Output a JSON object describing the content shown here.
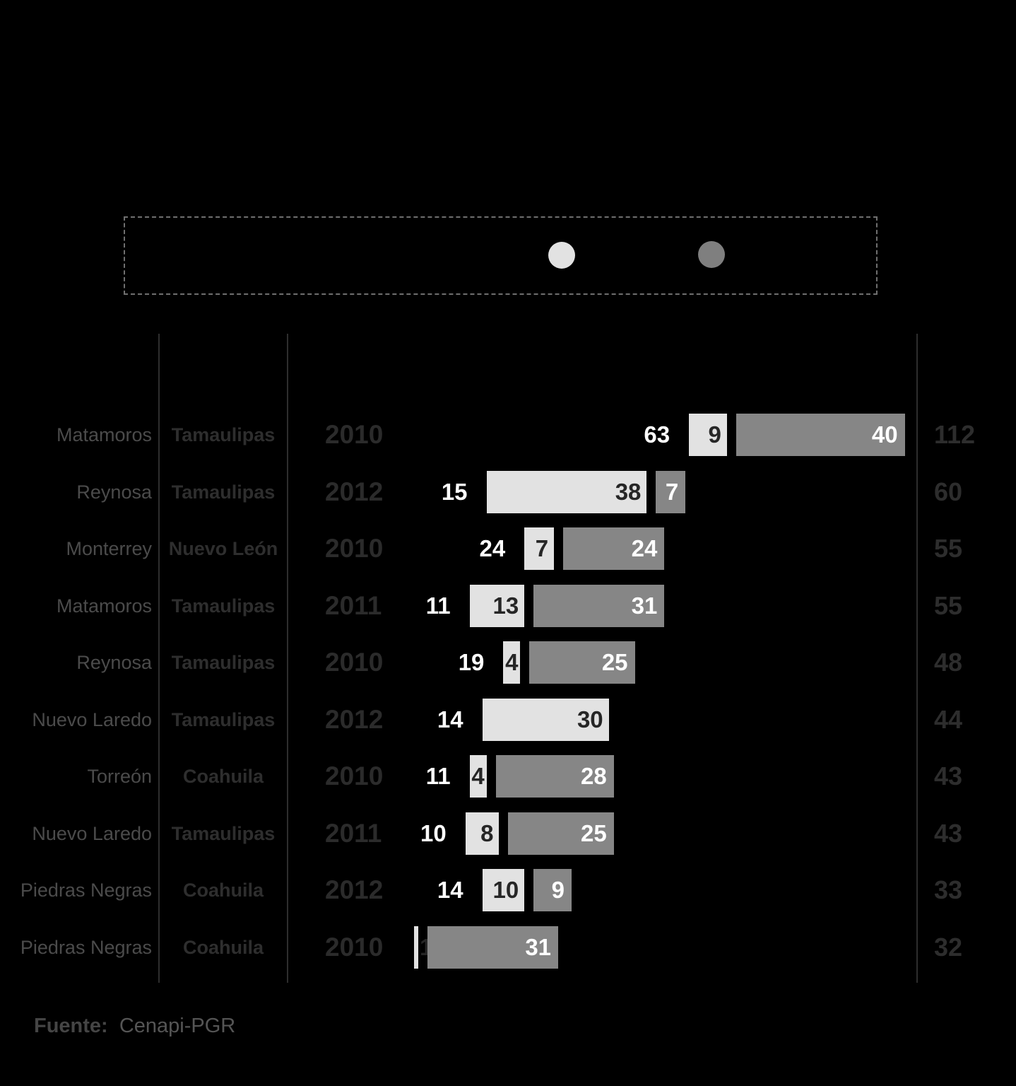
{
  "colors": {
    "background": "#000000",
    "divider_line": "#2e2e2e",
    "city_text": "#4b4b4b",
    "state_text": "#2e2e2e",
    "year_text": "#2b2b2b",
    "total_text": "#2d2d2d",
    "bar_label_on_light": "#262626",
    "bar_label_on_dark": "#ffffff",
    "legend_border": "#6f6f6f"
  },
  "legend": {
    "dots": [
      {
        "icon": "legend-dot-light-icon",
        "color": "#e2e2e2"
      },
      {
        "icon": "legend-dot-dark-icon",
        "color": "#7f7f7f"
      }
    ]
  },
  "chart_data": {
    "type": "bar",
    "orientation": "horizontal",
    "stacked": true,
    "series_colors": [
      "#000000",
      "#e2e2e2",
      "#868686"
    ],
    "rows": [
      {
        "city": "Matamoros",
        "state": "Tamaulipas",
        "year": "2010",
        "values": [
          63,
          9,
          40
        ],
        "total": 112
      },
      {
        "city": "Reynosa",
        "state": "Tamaulipas",
        "year": "2012",
        "values": [
          15,
          38,
          7
        ],
        "total": 60
      },
      {
        "city": "Monterrey",
        "state": "Nuevo León",
        "year": "2010",
        "values": [
          24,
          7,
          24
        ],
        "total": 55
      },
      {
        "city": "Matamoros",
        "state": "Tamaulipas",
        "year": "2011",
        "values": [
          11,
          13,
          31
        ],
        "total": 55
      },
      {
        "city": "Reynosa",
        "state": "Tamaulipas",
        "year": "2010",
        "values": [
          19,
          4,
          25
        ],
        "total": 48
      },
      {
        "city": "Nuevo Laredo",
        "state": "Tamaulipas",
        "year": "2012",
        "values": [
          14,
          30,
          0
        ],
        "total": 44
      },
      {
        "city": "Torreón",
        "state": "Coahuila",
        "year": "2010",
        "values": [
          11,
          4,
          28
        ],
        "total": 43
      },
      {
        "city": "Nuevo Laredo",
        "state": "Tamaulipas",
        "year": "2011",
        "values": [
          10,
          8,
          25
        ],
        "total": 43
      },
      {
        "city": "Piedras Negras",
        "state": "Coahuila",
        "year": "2012",
        "values": [
          14,
          10,
          9
        ],
        "total": 33
      },
      {
        "city": "Piedras Negras",
        "state": "Coahuila",
        "year": "2010",
        "values": [
          0,
          1,
          31
        ],
        "total": 32
      }
    ]
  },
  "footer": {
    "source_label": "Fuente:",
    "source_value": "Cenapi-PGR"
  }
}
